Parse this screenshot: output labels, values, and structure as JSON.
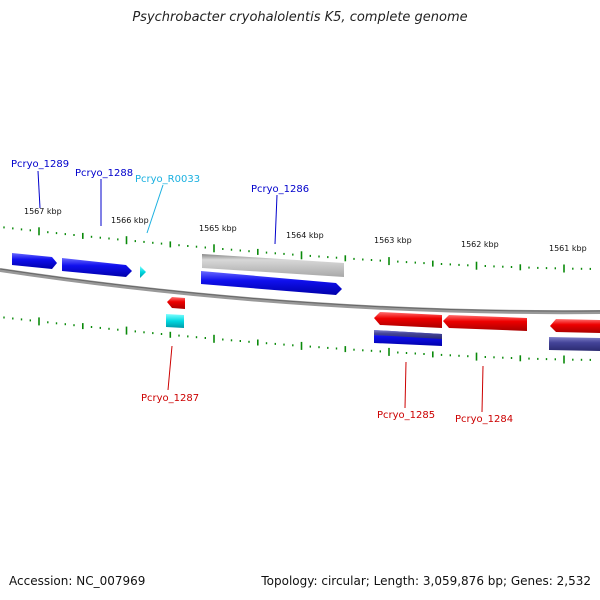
{
  "title": "Psychrobacter cryohalolentis K5, complete genome",
  "footer": {
    "accession": "Accession: NC_007969",
    "summary": "Topology: circular; Length: 3,059,876 bp; Genes: 2,532"
  },
  "colors": {
    "blue_gene": "#0000dd",
    "red_gene": "#ee0000",
    "cyan_gene": "#00d8e0",
    "gray_gene": "#b8b8b8",
    "slate_gene": "#4a4aa0",
    "backbone": "#888888",
    "tick": "#0a8a0a",
    "label_blue": "#0000cc",
    "label_cyan": "#1ab0e0",
    "label_red": "#cc0000"
  },
  "kbp_ticks": [
    "1567 kbp",
    "1566 kbp",
    "1565 kbp",
    "1564 kbp",
    "1563 kbp",
    "1562 kbp",
    "1561 kbp"
  ],
  "gene_labels": {
    "pcryo_1289": "Pcryo_1289",
    "pcryo_1288": "Pcryo_1288",
    "pcryo_r0033": "Pcryo_R0033",
    "pcryo_1286": "Pcryo_1286",
    "pcryo_1287": "Pcryo_1287",
    "pcryo_1285": "Pcryo_1285",
    "pcryo_1284": "Pcryo_1284"
  }
}
